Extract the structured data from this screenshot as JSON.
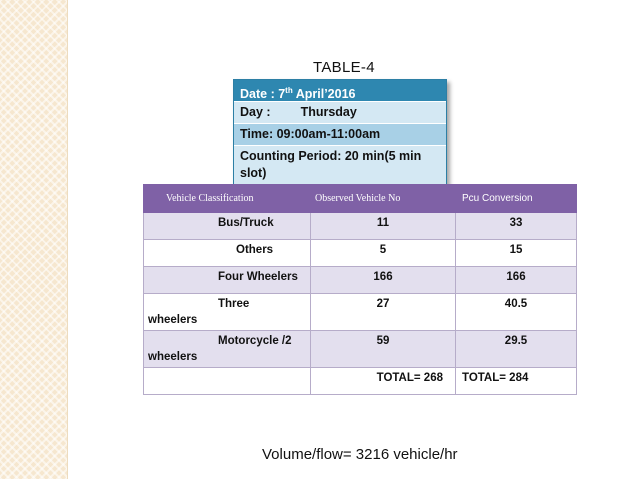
{
  "title": "TABLE-4",
  "info": {
    "date_label": "Date : 7",
    "date_sup": "th",
    "date_rest": " April’2016",
    "day_label": "Day   :",
    "day_value": "Thursday",
    "time": "Time: 09:00am-11:00am",
    "counting_period": "Counting Period: 20 min(5 min slot)"
  },
  "table": {
    "headers": [
      "Vehicle  Classification",
      "Observed Vehicle No",
      "Pcu Conversion"
    ],
    "rows": [
      {
        "classification": "Bus/Truck",
        "classification_cont": "",
        "observed": "11",
        "pcu": "33"
      },
      {
        "classification": "Others",
        "classification_cont": "",
        "observed": "5",
        "pcu": "15"
      },
      {
        "classification": "Four Wheelers",
        "classification_cont": "",
        "observed": "166",
        "pcu": "166"
      },
      {
        "classification": "Three",
        "classification_cont": "wheelers",
        "observed": "27",
        "pcu": "40.5"
      },
      {
        "classification": "Motorcycle /2",
        "classification_cont": "wheelers",
        "observed": "59",
        "pcu": "29.5"
      },
      {
        "classification": "",
        "classification_cont": "",
        "observed": "TOTAL=   268",
        "pcu": "TOTAL=  284"
      }
    ]
  },
  "volume": "Volume/flow= 3216 vehicle/hr"
}
